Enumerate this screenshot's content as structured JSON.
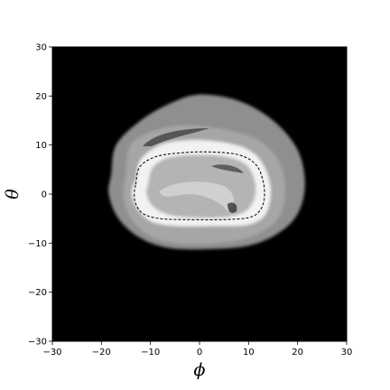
{
  "chart_data": {
    "type": "heatmap",
    "title": "",
    "xlabel": "ϕ",
    "ylabel": "θ",
    "xlim": [
      -30,
      30
    ],
    "ylim": [
      -30,
      30
    ],
    "xticks": [
      -30,
      -20,
      -10,
      0,
      10,
      20,
      30
    ],
    "yticks": [
      -30,
      -20,
      -10,
      0,
      10,
      20,
      30
    ],
    "grid": false,
    "legend": "none",
    "colormap": "grayscale",
    "background_color": "#000000",
    "regions": [
      {
        "name": "outer-halo",
        "color": "#8f8f8f",
        "outline": [
          [
            -18,
            4
          ],
          [
            -17,
            10
          ],
          [
            -12,
            15
          ],
          [
            -6,
            18.5
          ],
          [
            0,
            20.3
          ],
          [
            8,
            19
          ],
          [
            15,
            15
          ],
          [
            20,
            9
          ],
          [
            21.5,
            2
          ],
          [
            20,
            -4
          ],
          [
            16,
            -8
          ],
          [
            10,
            -10.5
          ],
          [
            2,
            -11.2
          ],
          [
            -6,
            -11
          ],
          [
            -12,
            -9
          ],
          [
            -16.5,
            -5
          ],
          [
            -18.5,
            0
          ]
        ]
      },
      {
        "name": "outer-inner-band",
        "color": "#a6a6a6",
        "outline": [
          [
            -15,
            4
          ],
          [
            -14,
            10
          ],
          [
            -9,
            13
          ],
          [
            -2,
            14
          ],
          [
            6,
            13
          ],
          [
            12,
            11
          ],
          [
            16,
            7
          ],
          [
            17.5,
            1
          ],
          [
            16,
            -5
          ],
          [
            11,
            -8.5
          ],
          [
            4,
            -10
          ],
          [
            -5,
            -10
          ],
          [
            -11,
            -8
          ],
          [
            -14.5,
            -4
          ],
          [
            -15.5,
            0
          ]
        ]
      },
      {
        "name": "bright-ring",
        "color": "#f2f2f2",
        "outline": [
          [
            -13,
            3
          ],
          [
            -12,
            7
          ],
          [
            -8,
            10
          ],
          [
            -2,
            11
          ],
          [
            5,
            10.5
          ],
          [
            10,
            9
          ],
          [
            13,
            6
          ],
          [
            14.5,
            1
          ],
          [
            13.5,
            -4
          ],
          [
            10,
            -6.2
          ],
          [
            3,
            -6.5
          ],
          [
            -5,
            -6.5
          ],
          [
            -10,
            -5.5
          ],
          [
            -13,
            -2.5
          ],
          [
            -13.8,
            0.5
          ]
        ]
      },
      {
        "name": "core",
        "color": "#b4b4b4",
        "outline": [
          [
            -10.5,
            2
          ],
          [
            -9.5,
            5.5
          ],
          [
            -6,
            7.5
          ],
          [
            0,
            8
          ],
          [
            6,
            7.5
          ],
          [
            10,
            5.5
          ],
          [
            11.5,
            1
          ],
          [
            10,
            -3
          ],
          [
            6,
            -4.6
          ],
          [
            0,
            -4.8
          ],
          [
            -6,
            -4.3
          ],
          [
            -9.5,
            -2.5
          ],
          [
            -10.8,
            0
          ]
        ]
      }
    ],
    "contour": {
      "style": "dashed",
      "color": "#000000",
      "path": [
        [
          -13,
          2
        ],
        [
          -12.2,
          5.5
        ],
        [
          -9,
          7.6
        ],
        [
          -4,
          8.4
        ],
        [
          2,
          8.6
        ],
        [
          8,
          8
        ],
        [
          11.5,
          6
        ],
        [
          13,
          2.5
        ],
        [
          13.2,
          -1
        ],
        [
          12.2,
          -3.5
        ],
        [
          10,
          -4.8
        ],
        [
          5,
          -5.2
        ],
        [
          -2,
          -5.2
        ],
        [
          -8,
          -5
        ],
        [
          -11.5,
          -4
        ],
        [
          -13,
          -2
        ],
        [
          -13.3,
          0
        ]
      ]
    }
  }
}
